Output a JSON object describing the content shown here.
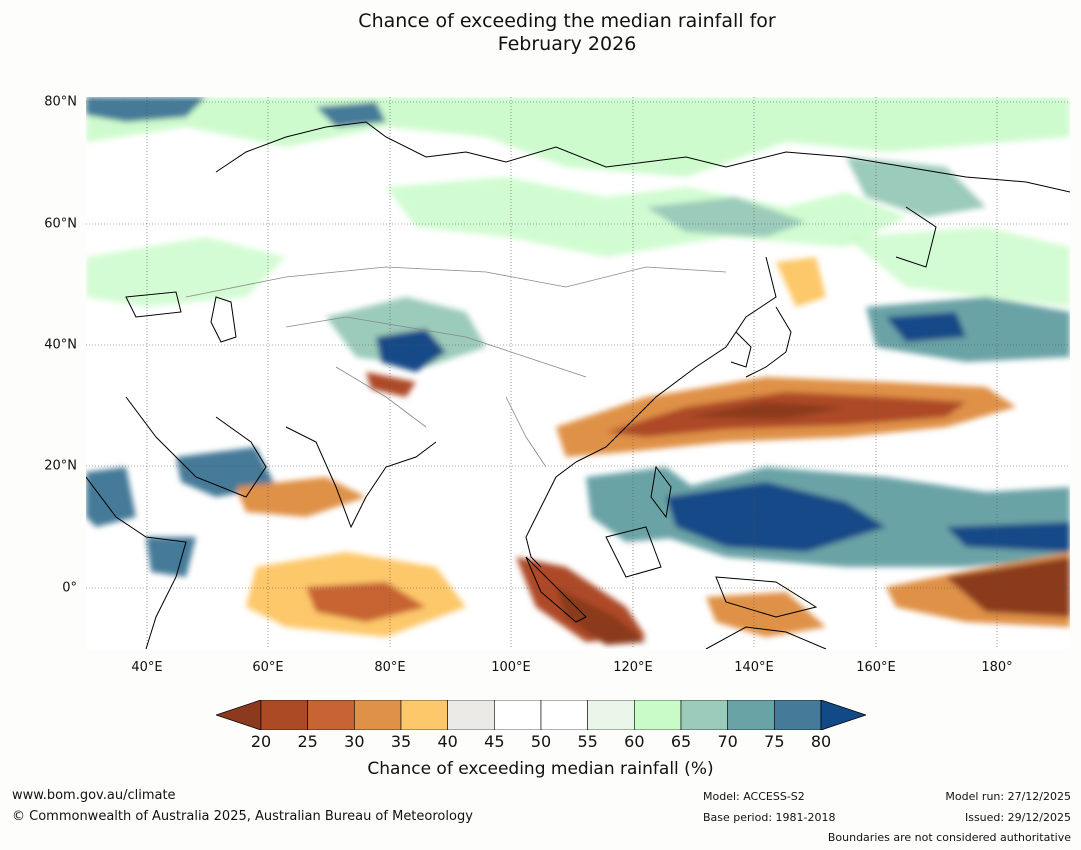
{
  "title": {
    "line1": "Chance of exceeding the median rainfall for",
    "line2": "February 2026"
  },
  "map": {
    "lat_labels": [
      "80°N",
      "60°N",
      "40°N",
      "20°N",
      "0°"
    ],
    "lon_labels": [
      "40°E",
      "60°E",
      "80°E",
      "100°E",
      "120°E",
      "140°E",
      "160°E",
      "180°"
    ],
    "extent": {
      "lon_min": 30,
      "lon_max": 192,
      "lat_min": -10,
      "lat_max": 80
    }
  },
  "colorbar": {
    "ticks": [
      "20",
      "25",
      "30",
      "35",
      "40",
      "45",
      "50",
      "55",
      "60",
      "65",
      "70",
      "75",
      "80"
    ],
    "colors": [
      "#8b3a1f",
      "#ad4a26",
      "#c86333",
      "#df9147",
      "#fdc86a",
      "#eceae6",
      "#ffffff",
      "#ffffff",
      "#eaf5e9",
      "#c9fbc9",
      "#9bcbba",
      "#6aa3a6",
      "#457a98",
      "#124a87"
    ],
    "label": "Chance of exceeding median rainfall (%)"
  },
  "footer": {
    "website": "www.bom.gov.au/climate",
    "copyright": "© Commonwealth of Australia 2025, Australian Bureau of Meteorology",
    "model": "Model: ACCESS-S2",
    "base_period": "Base period: 1981-2018",
    "model_run": "Model run: 27/12/2025",
    "issued": "Issued: 29/12/2025",
    "boundaries": "Boundaries are not considered authoritative"
  }
}
